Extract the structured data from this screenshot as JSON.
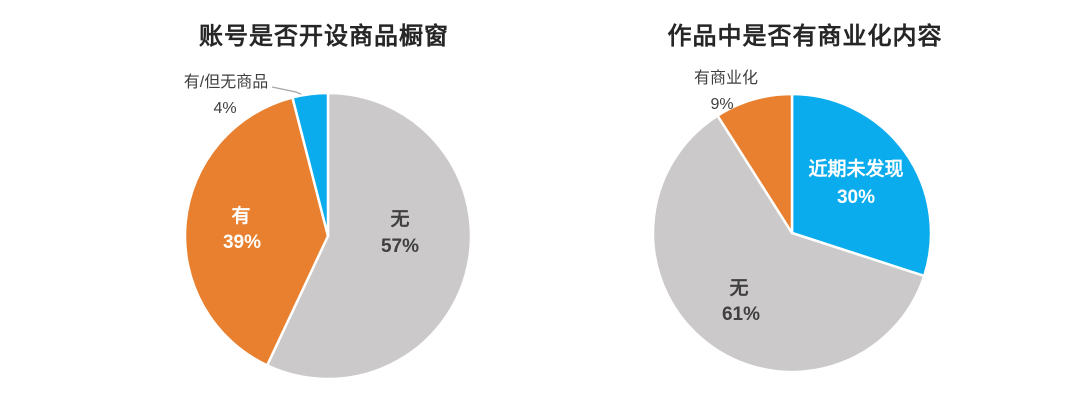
{
  "page": {
    "background": "#ffffff"
  },
  "colors": {
    "blue": "#0baced",
    "orange": "#e8802f",
    "gray": "#cbc9c9",
    "title_text": "#262626",
    "outside_label_text": "#3f3f3f",
    "inside_dark_label_text": "#404040",
    "inside_light_label_text": "#ffffff",
    "leader_line": "#a6a6a6"
  },
  "chart_data": [
    {
      "type": "pie",
      "title": "账号是否开设商品橱窗",
      "start_angle_deg": 0,
      "direction": "clockwise",
      "legend": "none",
      "slices": [
        {
          "label": "无",
          "value": 57,
          "value_label": "57%",
          "color": "#cbc9c9",
          "label_placement": "inside",
          "label_color": "#404040"
        },
        {
          "label": "有",
          "value": 39,
          "value_label": "39%",
          "color": "#e8802f",
          "label_placement": "inside",
          "label_color": "#ffffff"
        },
        {
          "label": "有/但无商品",
          "value": 4,
          "value_label": "4%",
          "color": "#0baced",
          "label_placement": "outside-callout",
          "label_color": "#3f3f3f"
        }
      ]
    },
    {
      "type": "pie",
      "title": "作品中是否有商业化内容",
      "start_angle_deg": 0,
      "direction": "clockwise",
      "legend": "none",
      "slices": [
        {
          "label": "近期未发现",
          "value": 30,
          "value_label": "30%",
          "color": "#0baced",
          "label_placement": "inside",
          "label_color": "#ffffff"
        },
        {
          "label": "无",
          "value": 61,
          "value_label": "61%",
          "color": "#cbc9c9",
          "label_placement": "inside",
          "label_color": "#404040"
        },
        {
          "label": "有商业化",
          "value": 9,
          "value_label": "9%",
          "color": "#e8802f",
          "label_placement": "outside",
          "label_color": "#3f3f3f"
        }
      ]
    }
  ]
}
